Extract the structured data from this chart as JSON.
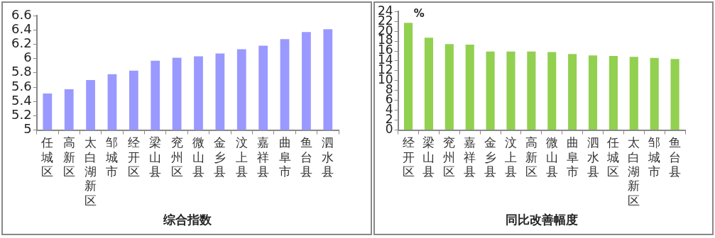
{
  "chart_data": [
    {
      "type": "bar",
      "xlabel": "综合指数",
      "categories": [
        "任城区",
        "高新区",
        "太白湖新区",
        "邹城市",
        "经开区",
        "梁山县",
        "兖州区",
        "微山县",
        "金乡县",
        "汶上县",
        "嘉祥县",
        "曲阜市",
        "鱼台县",
        "泗水县"
      ],
      "values": [
        5.51,
        5.57,
        5.7,
        5.78,
        5.83,
        5.97,
        6.01,
        6.03,
        6.07,
        6.13,
        6.18,
        6.27,
        6.37,
        6.41
      ],
      "color": "#9999ff",
      "ylim": [
        5,
        6.6
      ],
      "yticks": [
        5,
        5.2,
        5.4,
        5.6,
        5.8,
        6,
        6.2,
        6.4,
        6.6
      ],
      "grid": false,
      "legend": false
    },
    {
      "type": "bar",
      "xlabel": "同比改善幅度",
      "ylabel": "%",
      "categories": [
        "经开区",
        "梁山县",
        "兖州区",
        "嘉祥县",
        "金乡县",
        "汶上县",
        "高新区",
        "微山县",
        "曲阜市",
        "泗水县",
        "任城区",
        "太白湖新区",
        "邹城市",
        "鱼台县"
      ],
      "values": [
        21.7,
        18.7,
        17.4,
        17.3,
        15.9,
        15.9,
        15.9,
        15.8,
        15.4,
        15.1,
        15.0,
        14.8,
        14.6,
        14.4
      ],
      "color": "#92d050",
      "ylim": [
        0,
        24
      ],
      "yticks": [
        0,
        2,
        4,
        6,
        8,
        10,
        12,
        14,
        16,
        18,
        20,
        22,
        24
      ],
      "grid": false,
      "legend": false
    }
  ]
}
